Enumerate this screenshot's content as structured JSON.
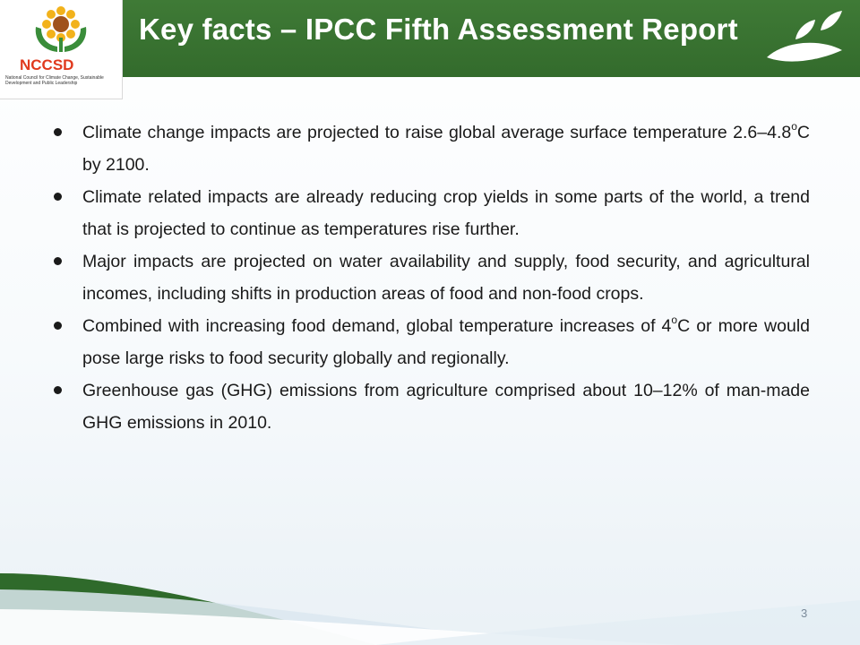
{
  "header": {
    "title": "Key facts – IPCC Fifth Assessment Report",
    "bar_color": "#3a7432"
  },
  "logo": {
    "text": "NCCSD",
    "caption": "National Council for Climate Change, Sustainable Development and Public Leadership",
    "icon": "sunflower-hands-icon"
  },
  "bullets": [
    {
      "pre": "Climate change impacts are projected to raise global average surface temperature 2.6–4.8",
      "sup": "o",
      "post": "C by 2100."
    },
    {
      "pre": "Climate related impacts are already reducing crop yields in some parts of the world, a trend that is projected to continue as temperatures rise further.",
      "sup": "",
      "post": ""
    },
    {
      "pre": "Major impacts are projected on water availability and supply, food security, and agricultural incomes, including shifts in production areas of food and non-food crops.",
      "sup": "",
      "post": ""
    },
    {
      "pre": "Combined with increasing food demand, global temperature increases of 4",
      "sup": "o",
      "post": "C or more would pose large risks to food security globally and regionally."
    },
    {
      "pre": "Greenhouse gas (GHG) emissions from agriculture comprised about 10–12% of man-made GHG emissions in 2010.",
      "sup": "",
      "post": ""
    }
  ],
  "footer": {
    "page_number": "3"
  },
  "colors": {
    "accent_green": "#3a7432",
    "swoosh_green": "#2f6a2b",
    "text": "#1a1a1a"
  }
}
